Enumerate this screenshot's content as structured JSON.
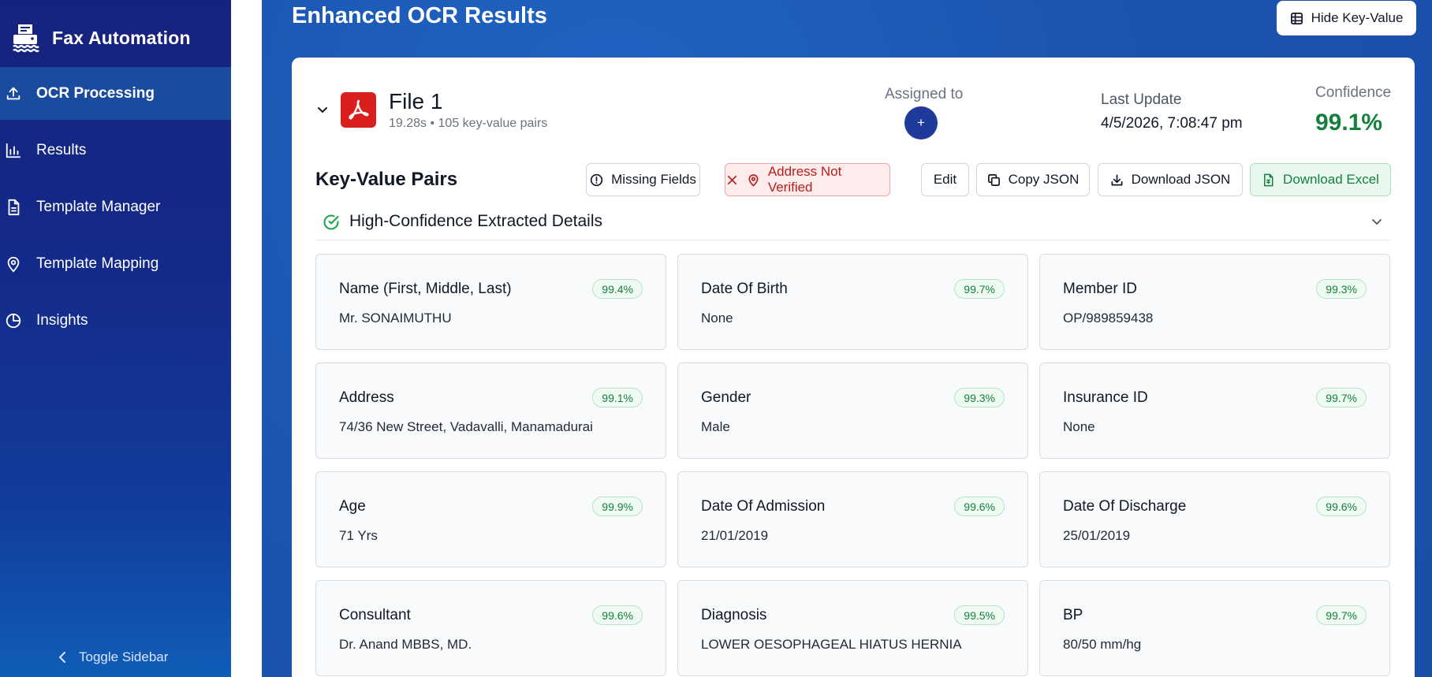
{
  "sidebar": {
    "brand": "Fax Automation",
    "items": [
      {
        "label": "OCR Processing",
        "icon": "upload-icon",
        "active": true
      },
      {
        "label": "Results",
        "icon": "bar-chart-icon"
      },
      {
        "label": "Template Manager",
        "icon": "document-icon"
      },
      {
        "label": "Template Mapping",
        "icon": "map-pin-icon"
      },
      {
        "label": "Insights",
        "icon": "pie-chart-icon"
      }
    ],
    "toggle_label": "Toggle Sidebar"
  },
  "header": {
    "title": "Enhanced OCR Results",
    "hide_kv_label": "Hide Key-Value"
  },
  "file": {
    "name": "File 1",
    "meta": "19.28s • 105 key-value pairs",
    "assigned_label": "Assigned to",
    "assign_symbol": "+",
    "last_update_label": "Last Update",
    "last_update_value": "4/5/2026, 7:08:47 pm",
    "confidence_label": "Confidence",
    "confidence_value": "99.1%"
  },
  "kv": {
    "title": "Key-Value Pairs",
    "actions": {
      "missing_fields": "Missing Fields",
      "address_not_verified": "Address Not Verified",
      "edit": "Edit",
      "copy_json": "Copy JSON",
      "download_json": "Download JSON",
      "download_excel": "Download Excel"
    },
    "section_label": "High-Confidence Extracted Details",
    "fields": [
      {
        "label": "Name (First, Middle, Last)",
        "value": "Mr. SONAIMUTHU",
        "confidence": "99.4%"
      },
      {
        "label": "Date Of Birth",
        "value": "None",
        "confidence": "99.7%"
      },
      {
        "label": "Member ID",
        "value": "OP/989859438",
        "confidence": "99.3%"
      },
      {
        "label": "Address",
        "value": "74/36 New Street, Vadavalli, Manamadurai",
        "confidence": "99.1%"
      },
      {
        "label": "Gender",
        "value": "Male",
        "confidence": "99.3%"
      },
      {
        "label": "Insurance ID",
        "value": "None",
        "confidence": "99.7%"
      },
      {
        "label": "Age",
        "value": "71 Yrs",
        "confidence": "99.9%"
      },
      {
        "label": "Date Of Admission",
        "value": "21/01/2019",
        "confidence": "99.6%"
      },
      {
        "label": "Date Of Discharge",
        "value": "25/01/2019",
        "confidence": "99.6%"
      },
      {
        "label": "Consultant",
        "value": "Dr. Anand MBBS, MD.",
        "confidence": "99.6%"
      },
      {
        "label": "Diagnosis",
        "value": "LOWER OESOPHAGEAL HIATUS HERNIA",
        "confidence": "99.5%"
      },
      {
        "label": "BP",
        "value": "80/50 mm/hg",
        "confidence": "99.7%"
      }
    ]
  },
  "colors": {
    "sidebar_top": "#16237e",
    "sidebar_bottom": "#0f5db8",
    "main_bg": "#1b55b1",
    "accent_green": "#15803d",
    "danger_red": "#b91c1c",
    "pdf_red": "#d91e1e"
  }
}
